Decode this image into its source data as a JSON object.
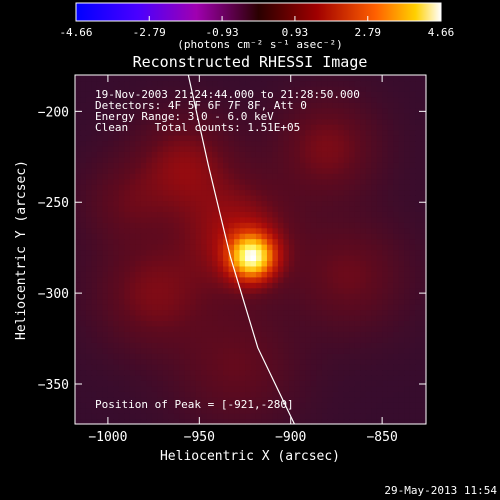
{
  "chart_data": {
    "type": "heatmap",
    "title": "Reconstructed RHESSI Image",
    "xlabel": "Heliocentric X (arcsec)",
    "ylabel": "Heliocentric Y (arcsec)",
    "xlim": [
      -1018,
      -826
    ],
    "ylim": [
      -372,
      -180
    ],
    "x_ticks": [
      -1000,
      -950,
      -900,
      -850
    ],
    "y_ticks": [
      -350,
      -300,
      -250,
      -200
    ],
    "colorbar": {
      "label": "(photons cm⁻² s⁻¹ asec⁻²)",
      "ticks": [
        "-4.66",
        "-2.79",
        "-0.93",
        "0.93",
        "2.79",
        "4.66"
      ],
      "min": -4.66,
      "max": 4.66
    },
    "annotations": [
      "19-Nov-2003 21:24:44.000 to 21:28:50.000",
      "Detectors: 4F 5F 6F 7F 8F, Att 0",
      "Energy Range: 3.0 - 6.0 keV",
      "Clean    Total counts: 1.51E+05"
    ],
    "peak_label": "Position of Peak = [-921,-280]",
    "peak": {
      "x": -921,
      "y": -280,
      "value": 4.66
    },
    "limb_curve": [
      [
        -956,
        -180
      ],
      [
        -945,
        -230
      ],
      [
        -933,
        -280
      ],
      [
        -918,
        -330
      ],
      [
        -898,
        -372
      ]
    ],
    "source_components": [
      {
        "x": -921,
        "y": -280,
        "sigma": 9,
        "amplitude": 4.4
      },
      {
        "x": -929,
        "y": -268,
        "sigma": 20,
        "amplitude": 1.6
      },
      {
        "x": -958,
        "y": -230,
        "sigma": 18,
        "amplitude": 1.3
      },
      {
        "x": -975,
        "y": -300,
        "sigma": 20,
        "amplitude": 1.1
      },
      {
        "x": -880,
        "y": -220,
        "sigma": 18,
        "amplitude": 1.1
      },
      {
        "x": -868,
        "y": -290,
        "sigma": 20,
        "amplitude": 0.9
      },
      {
        "x": -930,
        "y": -340,
        "sigma": 22,
        "amplitude": 0.8
      },
      {
        "x": -990,
        "y": -250,
        "sigma": 16,
        "amplitude": 0.7
      }
    ],
    "grid": false
  },
  "footer": {
    "date_stamp": "29-May-2013 11:54"
  }
}
